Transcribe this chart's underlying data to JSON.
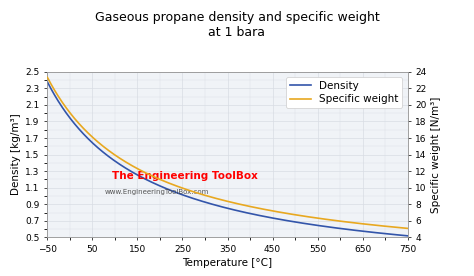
{
  "title_line1": "Gaseous propane density and specific weight",
  "title_line2": "at 1 bara",
  "xlabel": "Temperature [°C]",
  "ylabel_left": "Density [kg/m³]",
  "ylabel_right": "Specific weight [N/m³]",
  "x_min": -50,
  "x_max": 750,
  "y_left_min": 0.5,
  "y_left_max": 2.5,
  "y_right_min": 4,
  "y_right_max": 24,
  "x_ticks": [
    -50,
    50,
    150,
    250,
    350,
    450,
    550,
    650,
    750
  ],
  "y_left_ticks": [
    0.5,
    0.7,
    0.9,
    1.1,
    1.3,
    1.5,
    1.7,
    1.9,
    2.1,
    2.3,
    2.5
  ],
  "y_right_ticks": [
    4,
    6,
    8,
    10,
    12,
    14,
    16,
    18,
    20,
    22,
    24
  ],
  "density_color": "#3355aa",
  "specific_weight_color": "#e8a820",
  "background_color": "#f0f3f7",
  "grid_color": "#d8dde4",
  "legend_density": "Density",
  "legend_sw": "Specific weight",
  "watermark_line1": "The Engineering ToolBox",
  "watermark_line2": "www.EngineeringToolBox.com",
  "title_fontsize": 9.0,
  "axis_label_fontsize": 7.5,
  "tick_fontsize": 6.5,
  "legend_fontsize": 7.5,
  "watermark_fontsize": 7.5,
  "watermark_url_fontsize": 5.0
}
